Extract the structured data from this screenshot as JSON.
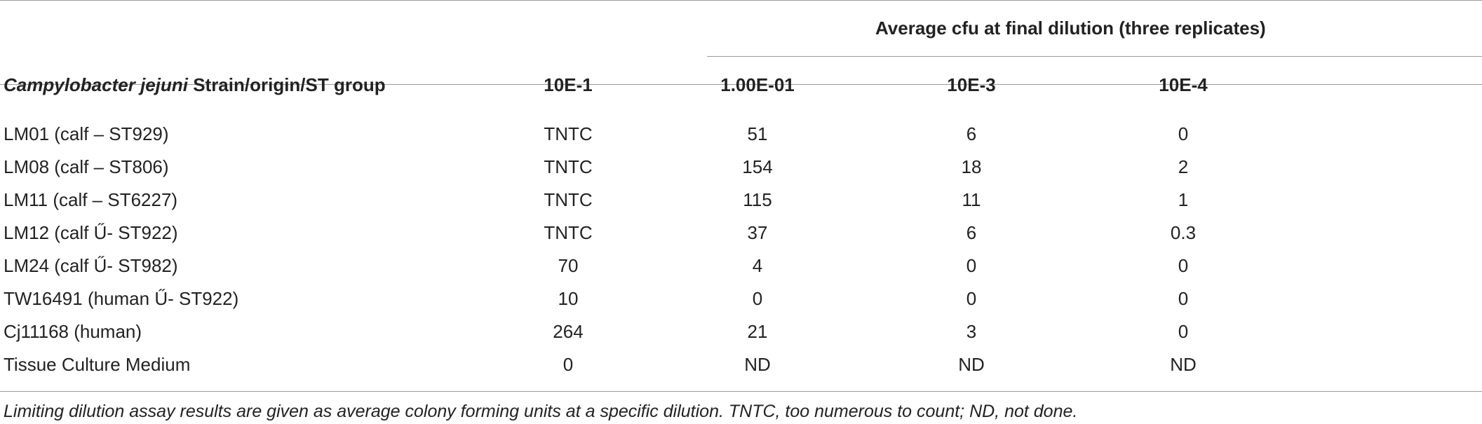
{
  "table": {
    "span_header": "Average cfu at final dilution (three replicates)",
    "header": {
      "strain_italic": "Campylobacter jejuni",
      "strain_rest": " Strain/origin/ST group",
      "col1": "10E-1",
      "col2": "1.00E-01",
      "col3": "10E-3",
      "col4": "10E-4"
    },
    "rows": [
      {
        "strain": "LM01 (calf – ST929)",
        "c1": "TNTC",
        "c2": "51",
        "c3": "6",
        "c4": "0"
      },
      {
        "strain": "LM08 (calf – ST806)",
        "c1": "TNTC",
        "c2": "154",
        "c3": "18",
        "c4": "2"
      },
      {
        "strain": "LM11 (calf – ST6227)",
        "c1": "TNTC",
        "c2": "115",
        "c3": "11",
        "c4": "1"
      },
      {
        "strain": "LM12 (calf Ű- ST922)",
        "c1": "TNTC",
        "c2": "37",
        "c3": "6",
        "c4": "0.3"
      },
      {
        "strain": "LM24 (calf Ű- ST982)",
        "c1": "70",
        "c2": "4",
        "c3": "0",
        "c4": "0"
      },
      {
        "strain": "TW16491 (human Ű- ST922)",
        "c1": "10",
        "c2": "0",
        "c3": "0",
        "c4": "0"
      },
      {
        "strain": "Cj11168 (human)",
        "c1": "264",
        "c2": "21",
        "c3": "3",
        "c4": "0"
      },
      {
        "strain": "Tissue Culture Medium",
        "c1": "0",
        "c2": "ND",
        "c3": "ND",
        "c4": "ND"
      }
    ],
    "footnote": "Limiting dilution assay results are given as average colony forming units at a specific dilution. TNTC, too numerous to count; ND, not done."
  }
}
